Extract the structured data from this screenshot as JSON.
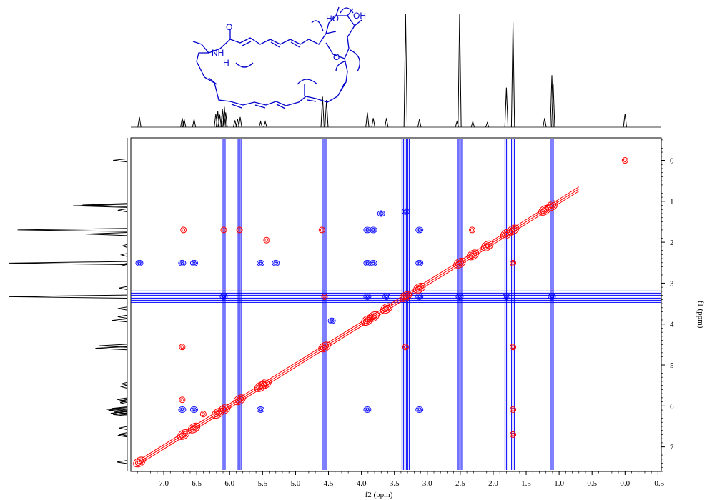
{
  "chart_data": {
    "type": "heatmap",
    "plot_kind": "2D NMR contour spectrum (homonuclear correlation) with 1D projections",
    "title": "",
    "xlabel": "f2 (ppm)",
    "ylabel": "f1 (ppm)",
    "xlim": [
      7.5,
      -0.55
    ],
    "ylim": [
      -0.55,
      7.6
    ],
    "x_ticks": [
      "7.0",
      "6.5",
      "6.0",
      "5.5",
      "5.0",
      "4.5",
      "4.0",
      "3.5",
      "3.0",
      "2.5",
      "2.0",
      "1.5",
      "1.0",
      "0.5",
      "0.0",
      "-0.5"
    ],
    "y_ticks": [
      "0",
      "1",
      "2",
      "3",
      "4",
      "5",
      "6",
      "7"
    ],
    "x_tick_values": [
      7.0,
      6.5,
      6.0,
      5.5,
      5.0,
      4.5,
      4.0,
      3.5,
      3.0,
      2.5,
      2.0,
      1.5,
      1.0,
      0.5,
      0.0,
      -0.5
    ],
    "y_tick_values": [
      0,
      1,
      2,
      3,
      4,
      5,
      6,
      7
    ],
    "grid": false,
    "projection_peaks": [
      {
        "ppm": 7.37,
        "h": 0.09
      },
      {
        "ppm": 6.72,
        "h": 0.08
      },
      {
        "ppm": 6.69,
        "h": 0.07
      },
      {
        "ppm": 6.54,
        "h": 0.07
      },
      {
        "ppm": 6.21,
        "h": 0.12
      },
      {
        "ppm": 6.18,
        "h": 0.14
      },
      {
        "ppm": 6.15,
        "h": 0.11
      },
      {
        "ppm": 6.11,
        "h": 0.16
      },
      {
        "ppm": 6.08,
        "h": 0.18
      },
      {
        "ppm": 6.06,
        "h": 0.13
      },
      {
        "ppm": 5.92,
        "h": 0.06
      },
      {
        "ppm": 5.88,
        "h": 0.07
      },
      {
        "ppm": 5.84,
        "h": 0.09
      },
      {
        "ppm": 5.53,
        "h": 0.05
      },
      {
        "ppm": 5.46,
        "h": 0.05
      },
      {
        "ppm": 4.59,
        "h": 0.27
      },
      {
        "ppm": 4.53,
        "h": 0.24
      },
      {
        "ppm": 3.91,
        "h": 0.13
      },
      {
        "ppm": 3.82,
        "h": 0.08
      },
      {
        "ppm": 3.62,
        "h": 0.08
      },
      {
        "ppm": 3.33,
        "h": 1.0
      },
      {
        "ppm": 3.12,
        "h": 0.07
      },
      {
        "ppm": 2.55,
        "h": 0.05
      },
      {
        "ppm": 2.51,
        "h": 1.0
      },
      {
        "ppm": 2.31,
        "h": 0.05
      },
      {
        "ppm": 2.09,
        "h": 0.04
      },
      {
        "ppm": 1.8,
        "h": 0.35
      },
      {
        "ppm": 1.7,
        "h": 0.93
      },
      {
        "ppm": 1.22,
        "h": 0.08
      },
      {
        "ppm": 1.11,
        "h": 0.46
      },
      {
        "ppm": 1.09,
        "h": 0.38
      },
      {
        "ppm": 0.0,
        "h": 0.12
      }
    ],
    "diagonal": {
      "from_ppm": 7.37,
      "to_ppm": 0.7,
      "color": "#ff0000"
    },
    "diagonal_peaks": [
      7.37,
      6.7,
      6.54,
      6.18,
      6.08,
      5.85,
      5.53,
      5.46,
      4.56,
      3.91,
      3.82,
      3.62,
      3.33,
      3.12,
      2.51,
      2.31,
      2.09,
      1.8,
      1.7,
      1.22,
      1.11
    ],
    "noe_cross_peaks": [
      {
        "x": 6.7,
        "y": 1.7
      },
      {
        "x": 6.09,
        "y": 1.7
      },
      {
        "x": 5.85,
        "y": 1.7
      },
      {
        "x": 4.56,
        "y": 3.33
      },
      {
        "x": 4.6,
        "y": 1.7
      },
      {
        "x": 3.33,
        "y": 4.56
      },
      {
        "x": 6.72,
        "y": 4.56
      },
      {
        "x": 6.72,
        "y": 5.85
      },
      {
        "x": 1.7,
        "y": 4.56
      },
      {
        "x": 1.7,
        "y": 2.51
      },
      {
        "x": 1.7,
        "y": 6.09
      },
      {
        "x": 1.7,
        "y": 6.7
      },
      {
        "x": 2.32,
        "y": 1.7
      },
      {
        "x": 6.4,
        "y": 6.2
      },
      {
        "x": 0.0,
        "y": 0.0
      },
      {
        "x": 5.44,
        "y": 1.95
      }
    ],
    "exchange_cross_peaks": [
      {
        "x": 7.37,
        "y": 2.51
      },
      {
        "x": 6.72,
        "y": 2.51
      },
      {
        "x": 6.54,
        "y": 2.51
      },
      {
        "x": 5.53,
        "y": 2.51
      },
      {
        "x": 5.3,
        "y": 2.51
      },
      {
        "x": 3.91,
        "y": 2.51
      },
      {
        "x": 3.82,
        "y": 2.51
      },
      {
        "x": 3.12,
        "y": 2.51
      },
      {
        "x": 6.72,
        "y": 6.09
      },
      {
        "x": 6.54,
        "y": 6.09
      },
      {
        "x": 3.91,
        "y": 6.09
      },
      {
        "x": 3.12,
        "y": 6.09
      },
      {
        "x": 5.53,
        "y": 6.09
      },
      {
        "x": 3.91,
        "y": 1.7
      },
      {
        "x": 3.82,
        "y": 1.7
      },
      {
        "x": 3.12,
        "y": 1.7
      },
      {
        "x": 4.45,
        "y": 3.92
      },
      {
        "x": 3.7,
        "y": 1.3
      },
      {
        "x": 3.33,
        "y": 1.25
      },
      {
        "x": 3.91,
        "y": 3.33
      },
      {
        "x": 3.62,
        "y": 3.33
      },
      {
        "x": 3.12,
        "y": 3.33
      },
      {
        "x": 6.09,
        "y": 3.33
      },
      {
        "x": 1.8,
        "y": 3.33
      },
      {
        "x": 1.11,
        "y": 3.33
      },
      {
        "x": 2.51,
        "y": 3.33
      }
    ],
    "strip_ppm": [
      6.09,
      5.85,
      4.56,
      3.33,
      2.51,
      1.8,
      1.7,
      1.11
    ],
    "band_ppm": [
      3.33
    ],
    "colors": {
      "positive": "#ff0000",
      "negative": "#0000ff",
      "projection": "#000000",
      "molecule": "#0000cc"
    }
  },
  "molecule": {
    "labels": {
      "nh": "NH",
      "h": "H",
      "o_carbonyl": "O",
      "ho": "HO",
      "oh": "OH",
      "o_ring": "O"
    }
  }
}
